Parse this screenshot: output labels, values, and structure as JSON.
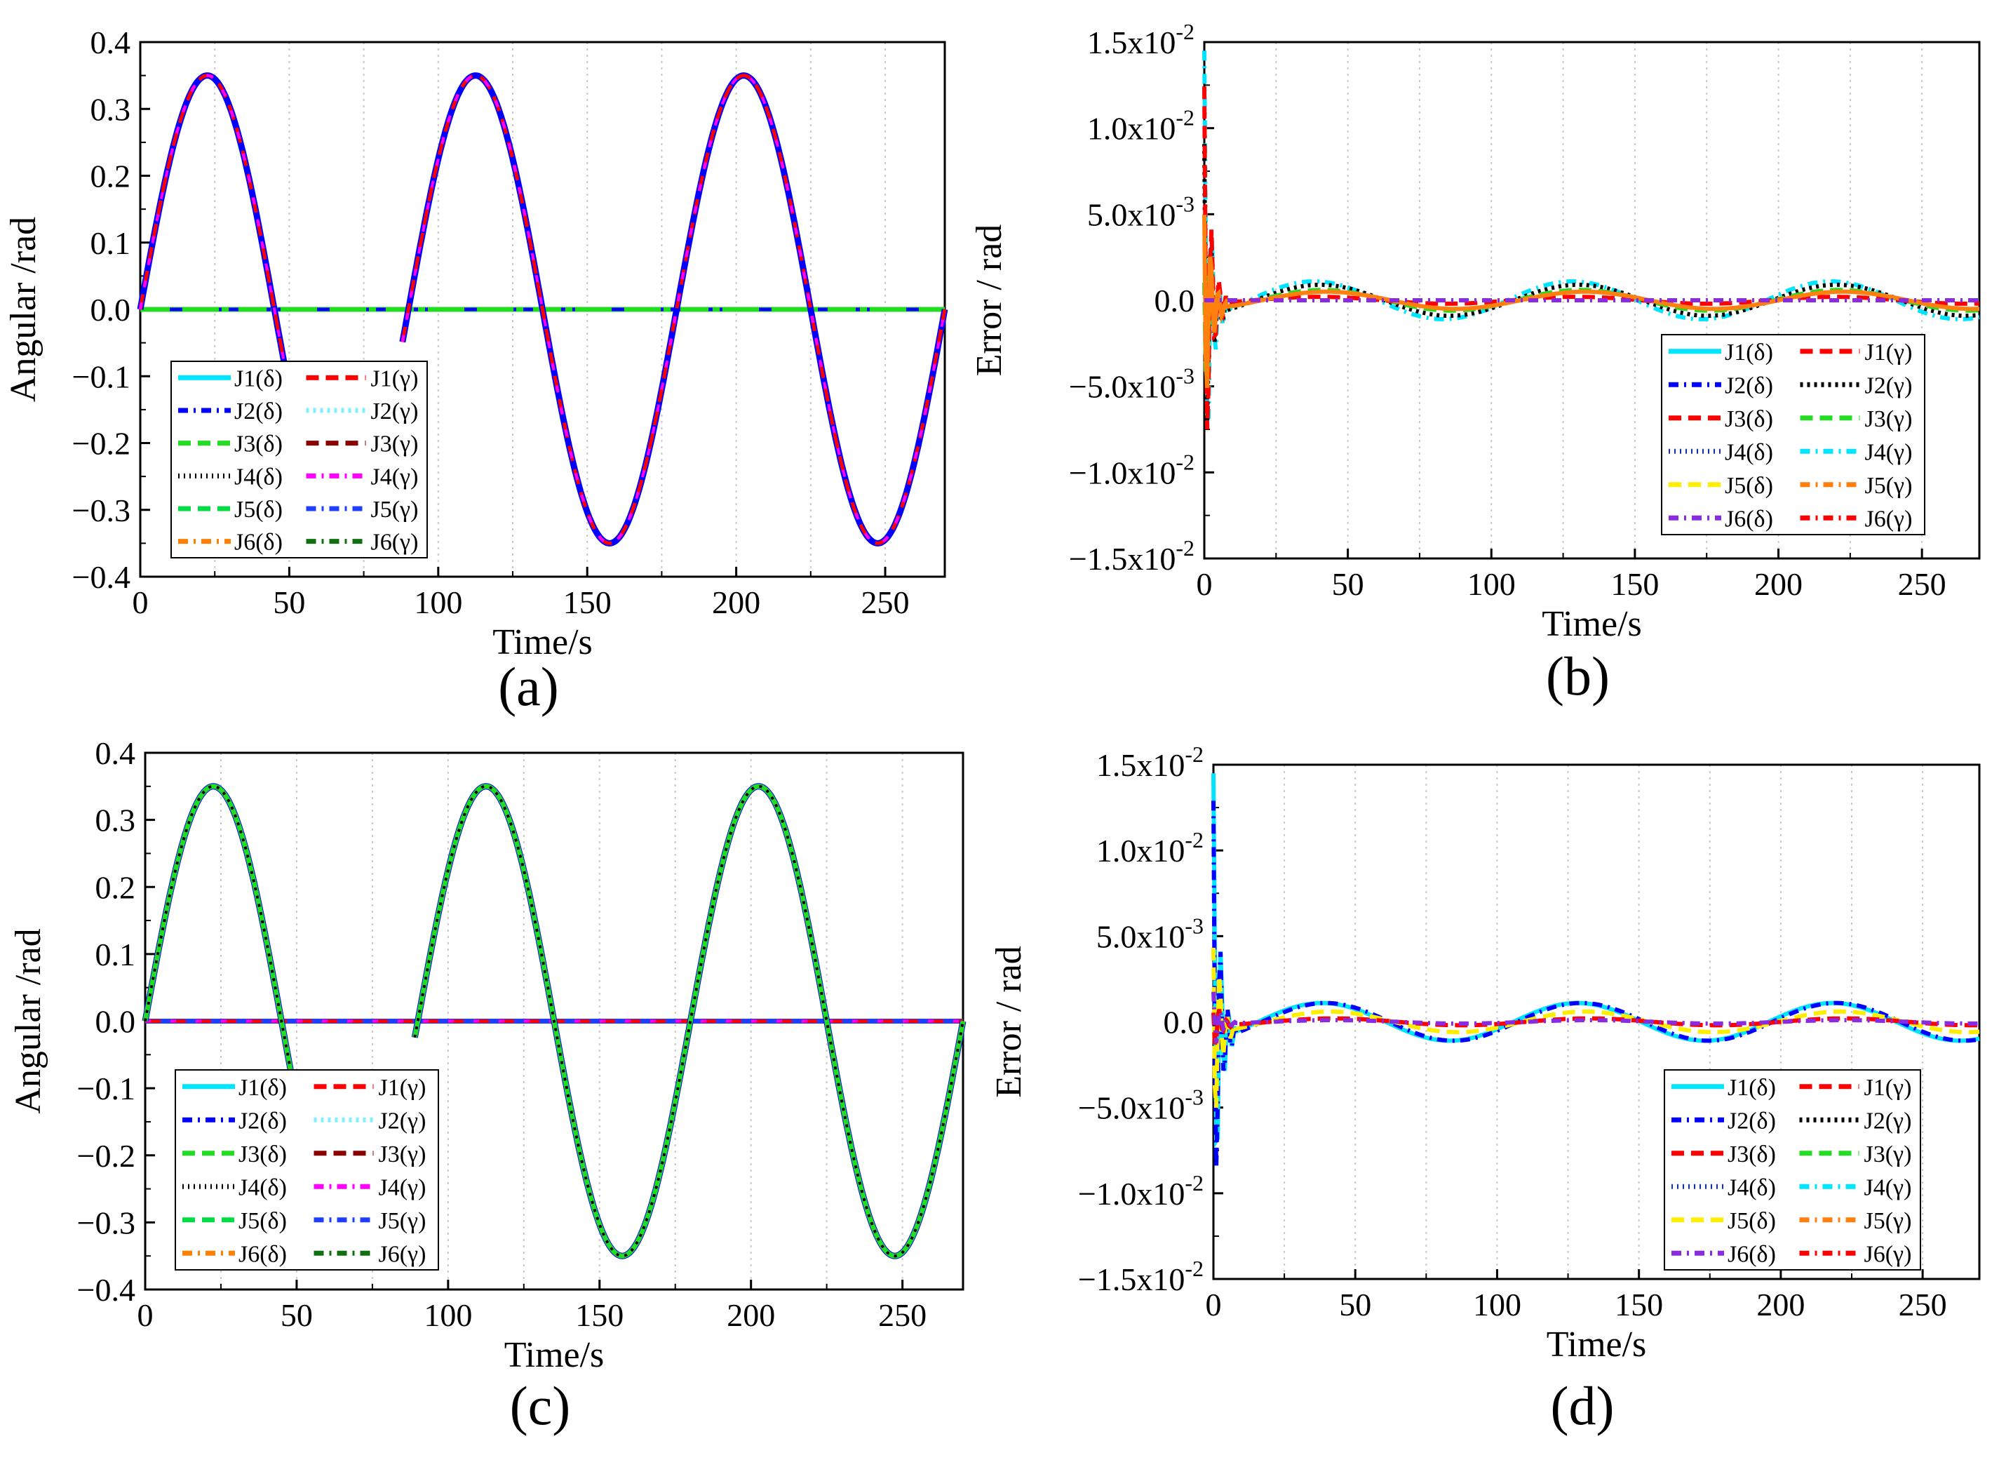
{
  "colors": {
    "J1d": "#00e5ff",
    "J1g": "#ff0000",
    "J2d": "#0000ff",
    "J2g": "#80f0ff",
    "J3d": "#22dd22",
    "J3g": "#8b0000",
    "J4d": "#000000",
    "J4g": "#ff00ff",
    "J5d": "#00dd44",
    "J5g": "#1f3fff",
    "J6d": "#ff8000",
    "J6g": "#107010",
    "errJ1d": "#00e5ff",
    "errJ1g": "#ff0000",
    "errJ2d": "#0000ff",
    "errJ2g": "#000000",
    "errJ3d": "#ff0000",
    "errJ3g": "#22dd22",
    "errJ4d": "#1030e0",
    "errJ4g": "#00e5ff",
    "errJ5d": "#ffee00",
    "errJ5g": "#ff7f0f",
    "errJ6d": "#8a2be2",
    "errJ6g": "#ff0000"
  },
  "chart_data": [
    {
      "panel_label": "(a)",
      "type": "line",
      "xlabel": "Time/s",
      "ylabel": "Angular /rad",
      "xlim": [
        0,
        270
      ],
      "ylim": [
        -0.4,
        0.4
      ],
      "xticks": [
        "0",
        "50",
        "100",
        "150",
        "200",
        "250"
      ],
      "yticks": [
        "−0.4",
        "−0.3",
        "−0.2",
        "−0.1",
        "0.0",
        "0.1",
        "0.2",
        "0.3",
        "0.4"
      ],
      "grid": "vertical-dotted",
      "legend_position": "bottom-left",
      "legend": [
        [
          "J1(δ)",
          "J1(γ)"
        ],
        [
          "J2(δ)",
          "J2(γ)"
        ],
        [
          "J3(δ)",
          "J3(γ)"
        ],
        [
          "J4(δ)",
          "J4(γ)"
        ],
        [
          "J5(δ)",
          "J5(γ)"
        ],
        [
          "J6(δ)",
          "J6(γ)"
        ]
      ],
      "series": [
        {
          "name": "J1(δ)",
          "description": "zero",
          "amplitude": 0
        },
        {
          "name": "J1(γ)",
          "description": "sine",
          "amplitude": 0.35,
          "period": 90
        },
        {
          "name": "J2(δ)",
          "description": "sine",
          "amplitude": 0.35,
          "period": 90
        },
        {
          "name": "J2(γ)",
          "description": "zero",
          "amplitude": 0
        },
        {
          "name": "J3(δ)",
          "description": "zero",
          "amplitude": 0
        },
        {
          "name": "J3(γ)",
          "description": "zero",
          "amplitude": 0
        },
        {
          "name": "J4(δ)",
          "description": "zero",
          "amplitude": 0
        },
        {
          "name": "J4(γ)",
          "description": "sine",
          "amplitude": 0.35,
          "period": 90
        },
        {
          "name": "J5(δ)",
          "description": "zero",
          "amplitude": 0
        },
        {
          "name": "J5(γ)",
          "description": "sine",
          "amplitude": 0.35,
          "period": 90
        },
        {
          "name": "J6(δ)",
          "description": "zero",
          "amplitude": 0
        },
        {
          "name": "J6(γ)",
          "description": "zero",
          "amplitude": 0
        }
      ]
    },
    {
      "panel_label": "(b)",
      "type": "line",
      "xlabel": "Time/s",
      "ylabel": "Error / rad",
      "xlim": [
        0,
        270
      ],
      "ylim": [
        -0.015,
        0.015
      ],
      "xticks": [
        "0",
        "50",
        "100",
        "150",
        "200",
        "250"
      ],
      "yticks": [
        {
          "base": "−1.5x10",
          "exp": "-2"
        },
        {
          "base": "−1.0x10",
          "exp": "-2"
        },
        {
          "base": "−5.0x10",
          "exp": "-3"
        },
        {
          "base": "0.0",
          "exp": ""
        },
        {
          "base": "5.0x10",
          "exp": "-3"
        },
        {
          "base": "1.0x10",
          "exp": "-2"
        },
        {
          "base": "1.5x10",
          "exp": "-2"
        }
      ],
      "grid": "vertical-dotted",
      "legend_position": "lower-right",
      "legend": [
        [
          "J1(δ)",
          "J1(γ)"
        ],
        [
          "J2(δ)",
          "J2(γ)"
        ],
        [
          "J3(δ)",
          "J3(γ)"
        ],
        [
          "J4(δ)",
          "J4(γ)"
        ],
        [
          "J5(δ)",
          "J5(γ)"
        ],
        [
          "J6(δ)",
          "J6(γ)"
        ]
      ],
      "series": [
        {
          "name": "J4(γ)",
          "initial_peak": 0.0145,
          "steady_amplitude": 0.0011,
          "period": 90
        },
        {
          "name": "J2(γ)",
          "initial_peak": 0.011,
          "steady_amplitude": 0.0009,
          "period": 90
        },
        {
          "name": "J1(γ)",
          "initial_peak": 0.013,
          "steady_amplitude": 0.0002,
          "period": 90
        },
        {
          "name": "J5(γ)",
          "initial_peak": 0.008,
          "steady_amplitude": 0.0005,
          "period": 90
        },
        {
          "name": "J6(δ)",
          "initial_peak": 0.0,
          "steady_amplitude": 0.0,
          "period": 90
        }
      ]
    },
    {
      "panel_label": "(c)",
      "type": "line",
      "xlabel": "Time/s",
      "ylabel": "Angular /rad",
      "xlim": [
        0,
        270
      ],
      "ylim": [
        -0.4,
        0.4
      ],
      "xticks": [
        "0",
        "50",
        "100",
        "150",
        "200",
        "250"
      ],
      "yticks": [
        "−0.4",
        "−0.3",
        "−0.2",
        "−0.1",
        "0.0",
        "0.1",
        "0.2",
        "0.3",
        "0.4"
      ],
      "grid": "vertical-dotted",
      "legend_position": "bottom-left",
      "legend": [
        [
          "J1(δ)",
          "J1(γ)"
        ],
        [
          "J2(δ)",
          "J2(γ)"
        ],
        [
          "J3(δ)",
          "J3(γ)"
        ],
        [
          "J4(δ)",
          "J4(γ)"
        ],
        [
          "J5(δ)",
          "J5(γ)"
        ],
        [
          "J6(δ)",
          "J6(γ)"
        ]
      ],
      "series": [
        {
          "name": "J1(δ)",
          "description": "zero",
          "amplitude": 0
        },
        {
          "name": "J2(δ)",
          "description": "sine",
          "amplitude": 0.35,
          "period": 90
        },
        {
          "name": "J3(δ)",
          "description": "sine",
          "amplitude": 0.35,
          "period": 90
        },
        {
          "name": "J4(δ)",
          "description": "sine",
          "amplitude": 0.35,
          "period": 90
        },
        {
          "name": "J5(δ)",
          "description": "sine",
          "amplitude": 0.35,
          "period": 90
        },
        {
          "name": "J5(γ)",
          "description": "zero",
          "amplitude": 0
        }
      ]
    },
    {
      "panel_label": "(d)",
      "type": "line",
      "xlabel": "Time/s",
      "ylabel": "Error / rad",
      "xlim": [
        0,
        270
      ],
      "ylim": [
        -0.015,
        0.015
      ],
      "xticks": [
        "0",
        "50",
        "100",
        "150",
        "200",
        "250"
      ],
      "yticks": [
        {
          "base": "−1.5x10",
          "exp": "-2"
        },
        {
          "base": "−1.0x10",
          "exp": "-2"
        },
        {
          "base": "−5.0x10",
          "exp": "-3"
        },
        {
          "base": "0.0",
          "exp": ""
        },
        {
          "base": "5.0x10",
          "exp": "-3"
        },
        {
          "base": "1.0x10",
          "exp": "-2"
        },
        {
          "base": "1.5x10",
          "exp": "-2"
        }
      ],
      "grid": "vertical-dotted",
      "legend_position": "lower-right",
      "legend": [
        [
          "J1(δ)",
          "J1(γ)"
        ],
        [
          "J2(δ)",
          "J2(γ)"
        ],
        [
          "J3(δ)",
          "J3(γ)"
        ],
        [
          "J4(δ)",
          "J4(γ)"
        ],
        [
          "J5(δ)",
          "J5(γ)"
        ],
        [
          "J6(δ)",
          "J6(γ)"
        ]
      ],
      "series": [
        {
          "name": "J1(δ)",
          "initial_peak": 0.0145,
          "steady_amplitude": 0.0011,
          "period": 90
        },
        {
          "name": "J2(δ)",
          "initial_peak": 0.014,
          "steady_amplitude": 0.0011,
          "period": 90
        },
        {
          "name": "J5(δ)",
          "initial_peak": 0.008,
          "steady_amplitude": 0.0006,
          "period": 90
        },
        {
          "name": "J6(δ)",
          "initial_peak": 0.002,
          "steady_amplitude": 0.0001,
          "period": 90
        }
      ]
    }
  ]
}
